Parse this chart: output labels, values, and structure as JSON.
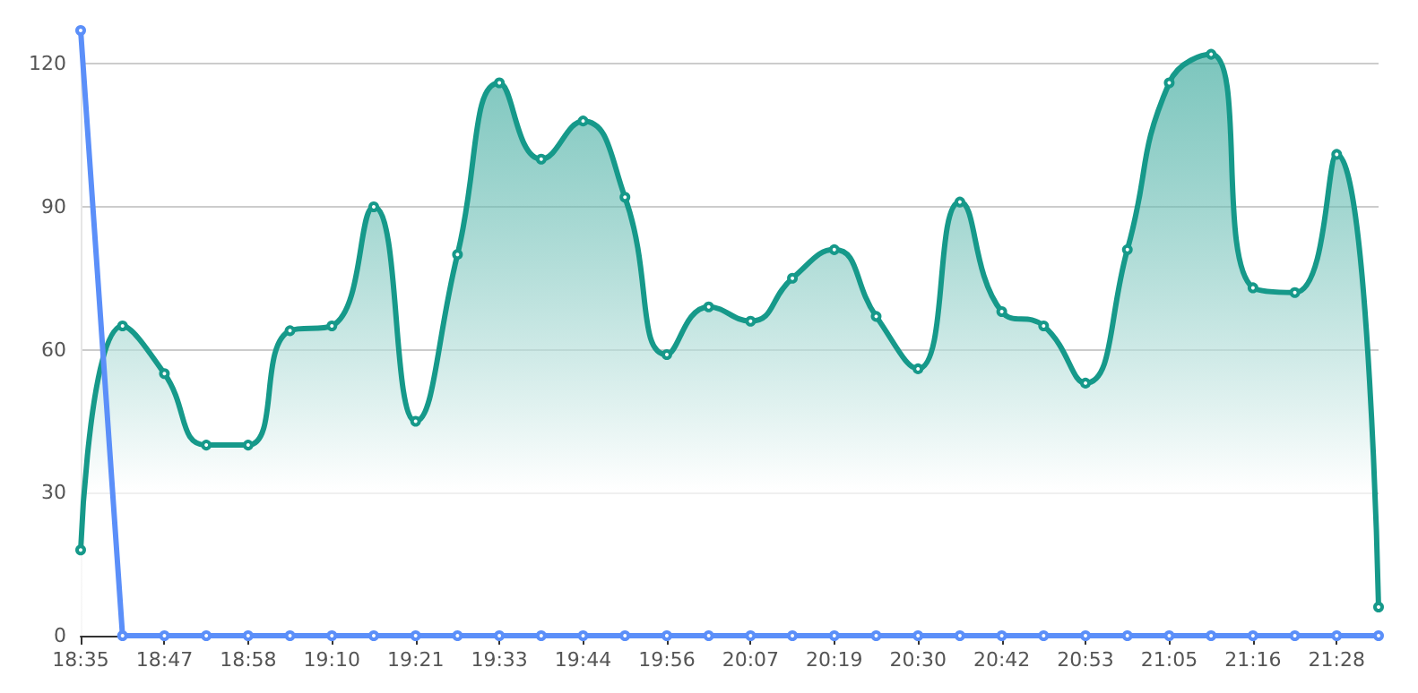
{
  "chart_data": {
    "type": "line",
    "categories": [
      "18:35",
      null,
      "18:47",
      null,
      "18:58",
      null,
      "19:10",
      null,
      "19:21",
      null,
      "19:33",
      null,
      "19:44",
      null,
      "19:56",
      null,
      "20:07",
      null,
      "20:19",
      null,
      "20:30",
      null,
      "20:42",
      null,
      "20:53",
      null,
      "21:05",
      null,
      "21:16",
      null,
      "21:28",
      null
    ],
    "series": [
      {
        "type": "area",
        "color": "#16998a",
        "values": [
          18,
          65,
          55,
          40,
          40,
          64,
          65,
          90,
          45,
          80,
          116,
          100,
          108,
          92,
          59,
          69,
          66,
          75,
          81,
          67,
          56,
          91,
          68,
          65,
          53,
          81,
          116,
          122,
          73,
          72,
          101,
          6
        ]
      },
      {
        "color": "#5b8ff9",
        "values": [
          127,
          0,
          0,
          0,
          0,
          0,
          0,
          0,
          0,
          0,
          0,
          0,
          0,
          0,
          0,
          0,
          0,
          0,
          0,
          0,
          0,
          0,
          0,
          0,
          0,
          0,
          0,
          0,
          0,
          0,
          0,
          0
        ]
      }
    ],
    "ylim": [
      0,
      127
    ],
    "yticks": [
      0,
      30,
      60,
      90,
      120
    ],
    "grid": "y",
    "marker": "circle"
  }
}
